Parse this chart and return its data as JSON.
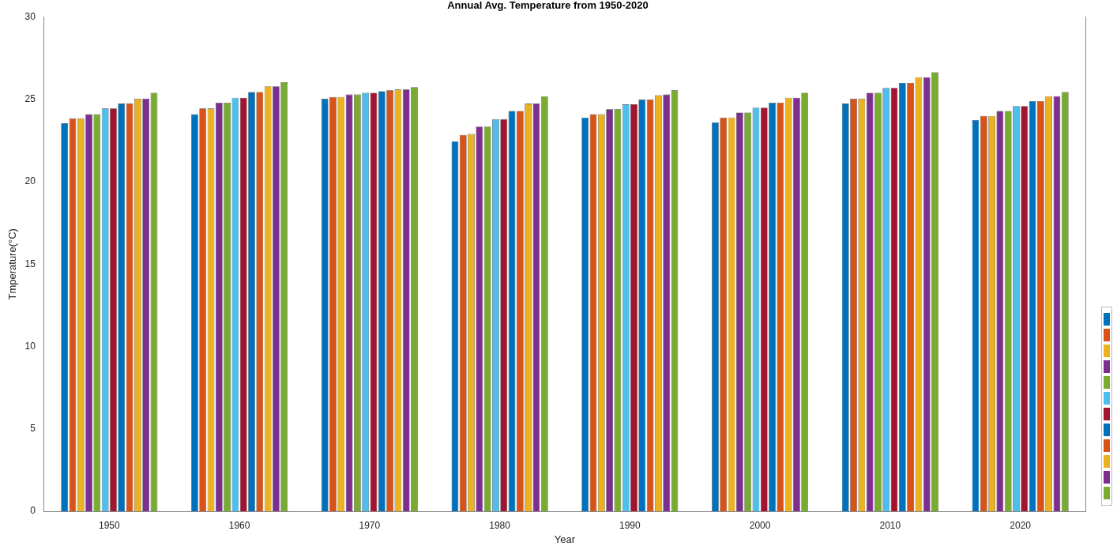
{
  "chart_data": {
    "type": "bar",
    "title": "Annual Avg. Temperature from 1950-2020",
    "xlabel": "Year",
    "ylabel": "Tmperature(°C)",
    "categories": [
      "1950",
      "1960",
      "1970",
      "1980",
      "1990",
      "2000",
      "2010",
      "2020"
    ],
    "series": [
      {
        "color": "#0072bd",
        "values": [
          23.55,
          24.1,
          25.05,
          22.45,
          23.9,
          23.6,
          24.75,
          23.75
        ]
      },
      {
        "color": "#d95319",
        "values": [
          23.85,
          24.45,
          25.15,
          22.85,
          24.1,
          23.9,
          25.05,
          24.0
        ]
      },
      {
        "color": "#edb120",
        "values": [
          23.85,
          24.45,
          25.15,
          22.9,
          24.1,
          23.9,
          25.05,
          24.0
        ]
      },
      {
        "color": "#7e2f8e",
        "values": [
          24.1,
          24.8,
          25.3,
          23.35,
          24.4,
          24.2,
          25.4,
          24.3
        ]
      },
      {
        "color": "#77ac30",
        "values": [
          24.1,
          24.8,
          25.3,
          23.35,
          24.4,
          24.2,
          25.4,
          24.3
        ]
      },
      {
        "color": "#4dbeee",
        "values": [
          24.45,
          25.1,
          25.4,
          23.8,
          24.7,
          24.5,
          25.7,
          24.6
        ]
      },
      {
        "color": "#a2142f",
        "values": [
          24.45,
          25.1,
          25.4,
          23.8,
          24.7,
          24.5,
          25.7,
          24.6
        ]
      },
      {
        "color": "#0072bd",
        "values": [
          24.75,
          25.45,
          25.5,
          24.3,
          25.0,
          24.8,
          26.0,
          24.9
        ]
      },
      {
        "color": "#d95319",
        "values": [
          24.75,
          25.45,
          25.55,
          24.3,
          25.0,
          24.8,
          26.0,
          24.9
        ]
      },
      {
        "color": "#edb120",
        "values": [
          25.05,
          25.8,
          25.6,
          24.75,
          25.25,
          25.1,
          26.35,
          25.2
        ]
      },
      {
        "color": "#7e2f8e",
        "values": [
          25.05,
          25.8,
          25.6,
          24.75,
          25.3,
          25.1,
          26.35,
          25.2
        ]
      },
      {
        "color": "#77ac30",
        "values": [
          25.4,
          26.05,
          25.75,
          25.2,
          25.55,
          25.4,
          26.65,
          25.45
        ]
      }
    ],
    "ylim": [
      0,
      30
    ],
    "yticks": [
      0,
      5,
      10,
      15,
      20,
      25,
      30
    ],
    "grid": false
  }
}
